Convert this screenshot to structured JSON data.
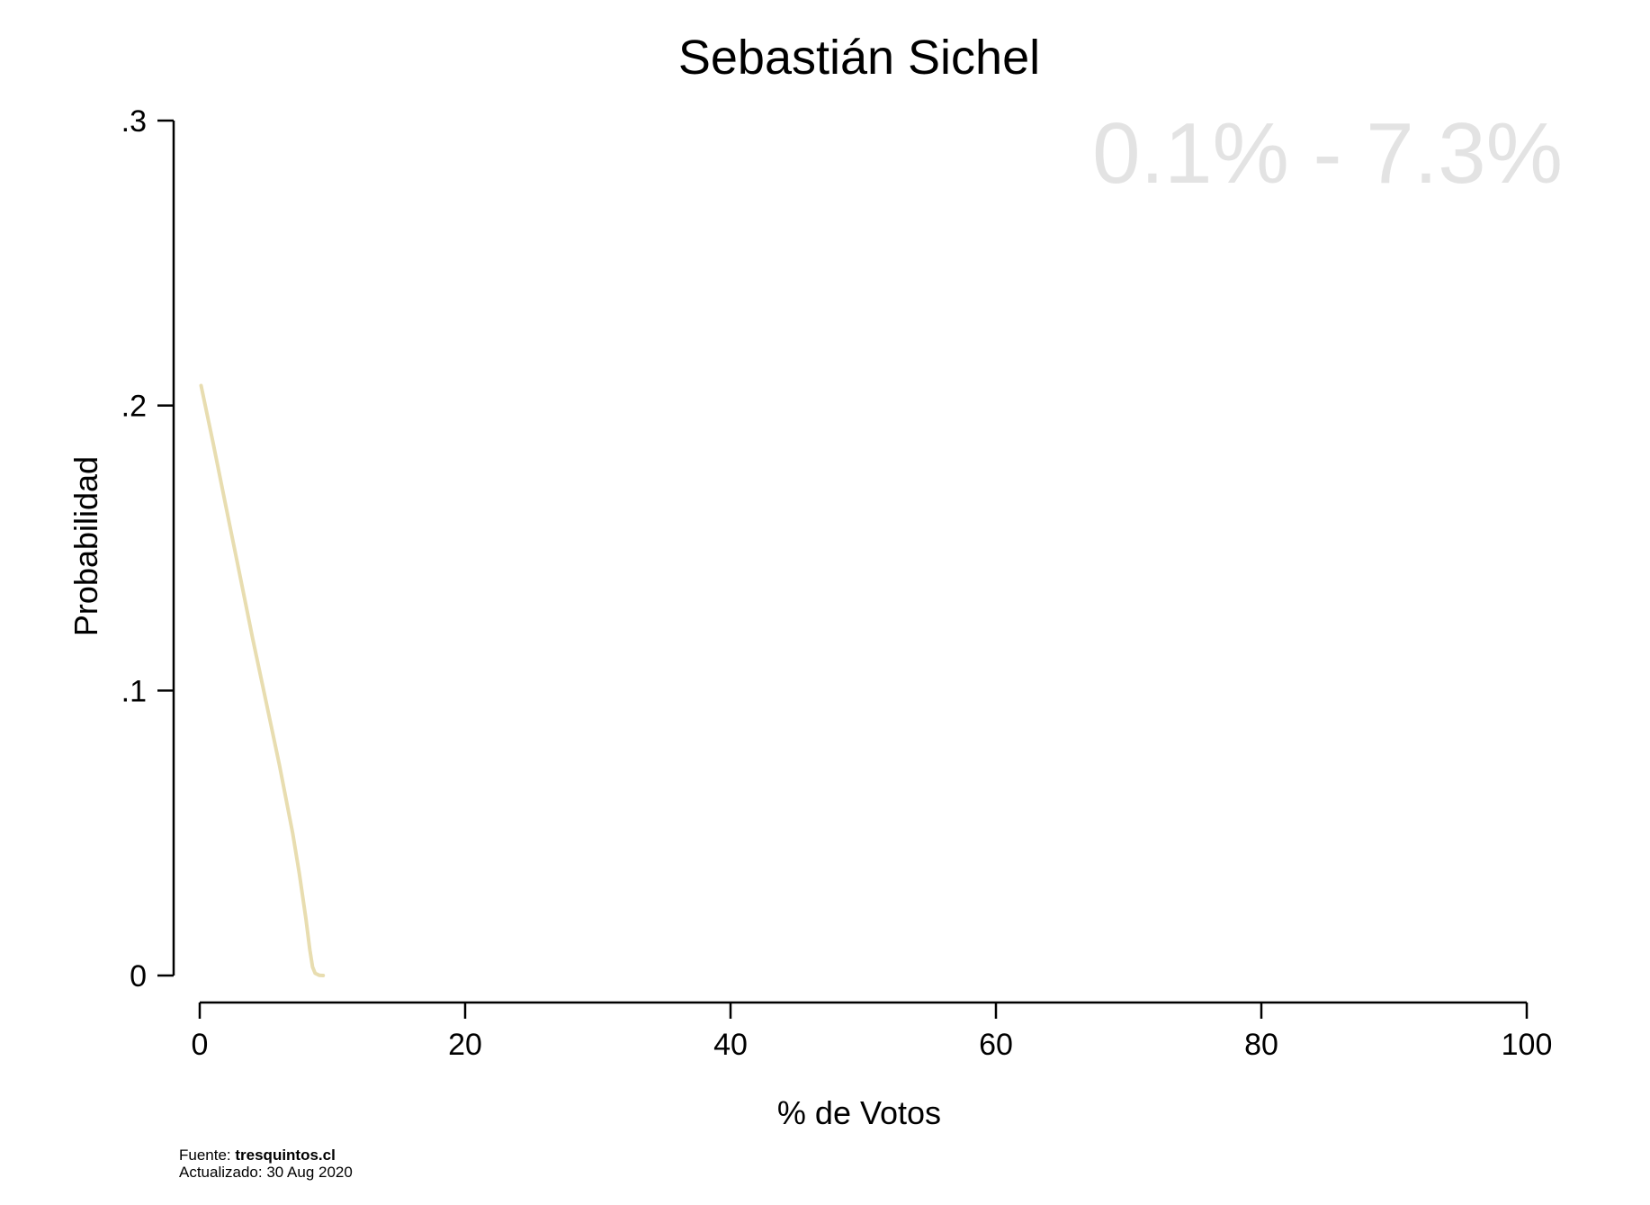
{
  "chart_data": {
    "type": "line",
    "title": "Sebastián Sichel",
    "xlabel": "% de Votos",
    "ylabel": "Probabilidad",
    "xlim": [
      0,
      100
    ],
    "ylim": [
      0,
      0.3
    ],
    "x_ticks": [
      0,
      20,
      40,
      60,
      80,
      100
    ],
    "x_tick_labels": [
      "0",
      "20",
      "40",
      "60",
      "80",
      "100"
    ],
    "y_ticks": [
      0,
      0.1,
      0.2,
      0.3
    ],
    "y_tick_labels": [
      "0",
      ".1",
      ".2",
      ".3"
    ],
    "grid": false,
    "legend": "none",
    "range_label": "0.1% - 7.3%",
    "series": [
      {
        "color": "#e8ddb0",
        "x": [
          0.1,
          1,
          2,
          3,
          4,
          5,
          6,
          7,
          7.5,
          8,
          8.3,
          8.5,
          8.7,
          9.0,
          9.3
        ],
        "y": [
          0.207,
          0.187,
          0.164,
          0.141,
          0.118,
          0.096,
          0.074,
          0.05,
          0.036,
          0.02,
          0.009,
          0.003,
          0.0008,
          0.0001,
          0.0
        ]
      }
    ]
  },
  "colors": {
    "line": "#e8ddb0",
    "range_label": "#e3e3e3",
    "axis": "#000000"
  },
  "footer": {
    "source_prefix": "Fuente: ",
    "source_name": "tresquintos.cl",
    "updated": "Actualizado: 30 Aug 2020"
  }
}
